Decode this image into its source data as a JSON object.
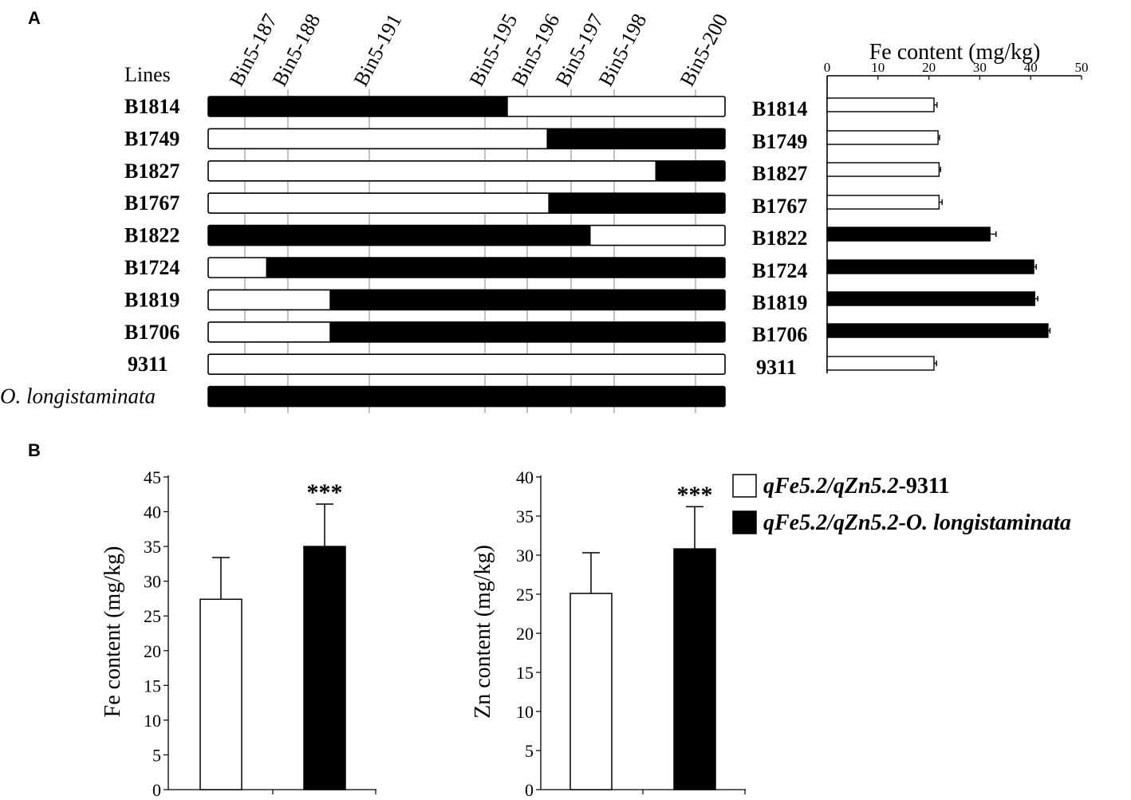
{
  "panel_labels": {
    "a": "A",
    "b": "B"
  },
  "panel_a": {
    "lines_header": "Lines",
    "markers": [
      "Bin5-187",
      "Bin5-188",
      "Bin5-191",
      "Bin5-195",
      "Bin5-196",
      "Bin5-197",
      "Bin5-198",
      "Bin5-200"
    ],
    "rows": [
      {
        "name": "B1814",
        "segments": [
          {
            "from": 0,
            "to": 0.58,
            "allele": "O. longistaminata"
          },
          {
            "from": 0.58,
            "to": 1,
            "allele": "9311"
          }
        ]
      },
      {
        "name": "B1749",
        "segments": [
          {
            "from": 0,
            "to": 0.655,
            "allele": "9311"
          },
          {
            "from": 0.655,
            "to": 1,
            "allele": "O. longistaminata"
          }
        ]
      },
      {
        "name": "B1827",
        "segments": [
          {
            "from": 0,
            "to": 0.865,
            "allele": "9311"
          },
          {
            "from": 0.865,
            "to": 1,
            "allele": "O. longistaminata"
          }
        ]
      },
      {
        "name": "B1767",
        "segments": [
          {
            "from": 0,
            "to": 0.658,
            "allele": "9311"
          },
          {
            "from": 0.658,
            "to": 1,
            "allele": "O. longistaminata"
          }
        ]
      },
      {
        "name": "B1822",
        "segments": [
          {
            "from": 0,
            "to": 0.74,
            "allele": "O. longistaminata"
          },
          {
            "from": 0.74,
            "to": 1,
            "allele": "9311"
          }
        ]
      },
      {
        "name": "B1724",
        "segments": [
          {
            "from": 0,
            "to": 0.112,
            "allele": "9311"
          },
          {
            "from": 0.112,
            "to": 1,
            "allele": "O. longistaminata"
          }
        ]
      },
      {
        "name": "B1819",
        "segments": [
          {
            "from": 0,
            "to": 0.235,
            "allele": "9311"
          },
          {
            "from": 0.235,
            "to": 1,
            "allele": "O. longistaminata"
          }
        ]
      },
      {
        "name": "B1706",
        "segments": [
          {
            "from": 0,
            "to": 0.235,
            "allele": "9311"
          },
          {
            "from": 0.235,
            "to": 1,
            "allele": "O. longistaminata"
          }
        ]
      },
      {
        "name": "9311",
        "segments": [
          {
            "from": 0,
            "to": 1,
            "allele": "9311"
          }
        ]
      },
      {
        "name": "O. longistaminata",
        "italic": true,
        "segments": [
          {
            "from": 0,
            "to": 1,
            "allele": "O. longistaminata"
          }
        ]
      }
    ]
  },
  "chart_data": [
    {
      "type": "bar",
      "orientation": "horizontal",
      "title": "Fe content (mg/kg)",
      "categories": [
        "B1814",
        "B1749",
        "B1827",
        "B1767",
        "B1822",
        "B1724",
        "B1819",
        "B1706",
        "9311"
      ],
      "values": [
        21,
        21.8,
        22,
        22,
        32,
        40.6,
        40.8,
        43.4,
        21
      ],
      "errors": [
        0.6,
        0.3,
        0.3,
        0.6,
        1.2,
        0.5,
        0.6,
        0.4,
        0.5
      ],
      "fills": [
        "#ffffff",
        "#ffffff",
        "#ffffff",
        "#ffffff",
        "#000000",
        "#000000",
        "#000000",
        "#000000",
        "#ffffff"
      ],
      "xlim": [
        0,
        50
      ],
      "xticks": [
        0,
        10,
        20,
        30,
        40,
        50
      ],
      "grid": false
    },
    {
      "type": "bar",
      "ylabel": "Fe content (mg/kg)",
      "categories": [
        "qFe5.2/qZn5.2-9311",
        "qFe5.2/qZn5.2-O. longistaminata"
      ],
      "values": [
        27.4,
        35
      ],
      "errors": [
        6,
        6.1
      ],
      "fills": [
        "#ffffff",
        "#000000"
      ],
      "annotations": [
        "",
        "***"
      ],
      "ylim": [
        0,
        45
      ],
      "yticks": [
        0,
        5,
        10,
        15,
        20,
        25,
        30,
        35,
        40,
        45
      ],
      "grid": false
    },
    {
      "type": "bar",
      "ylabel": "Zn content (mg/kg)",
      "categories": [
        "qFe5.2/qZn5.2-9311",
        "qFe5.2/qZn5.2-O. longistaminata"
      ],
      "values": [
        25.1,
        30.8
      ],
      "errors": [
        5.2,
        5.4
      ],
      "fills": [
        "#ffffff",
        "#000000"
      ],
      "annotations": [
        "",
        "***"
      ],
      "ylim": [
        0,
        40
      ],
      "yticks": [
        0,
        5,
        10,
        15,
        20,
        25,
        30,
        35,
        40
      ],
      "grid": false
    }
  ],
  "legend": {
    "placement": "right",
    "items": [
      {
        "prefix": "qFe5.2/qZn5.2",
        "suffix": "-9311",
        "suffix_italic": false,
        "fill": "#ffffff"
      },
      {
        "prefix": "qFe5.2/qZn5.2",
        "suffix": "-O. longistaminata",
        "suffix_italic": true,
        "fill": "#000000"
      }
    ]
  }
}
